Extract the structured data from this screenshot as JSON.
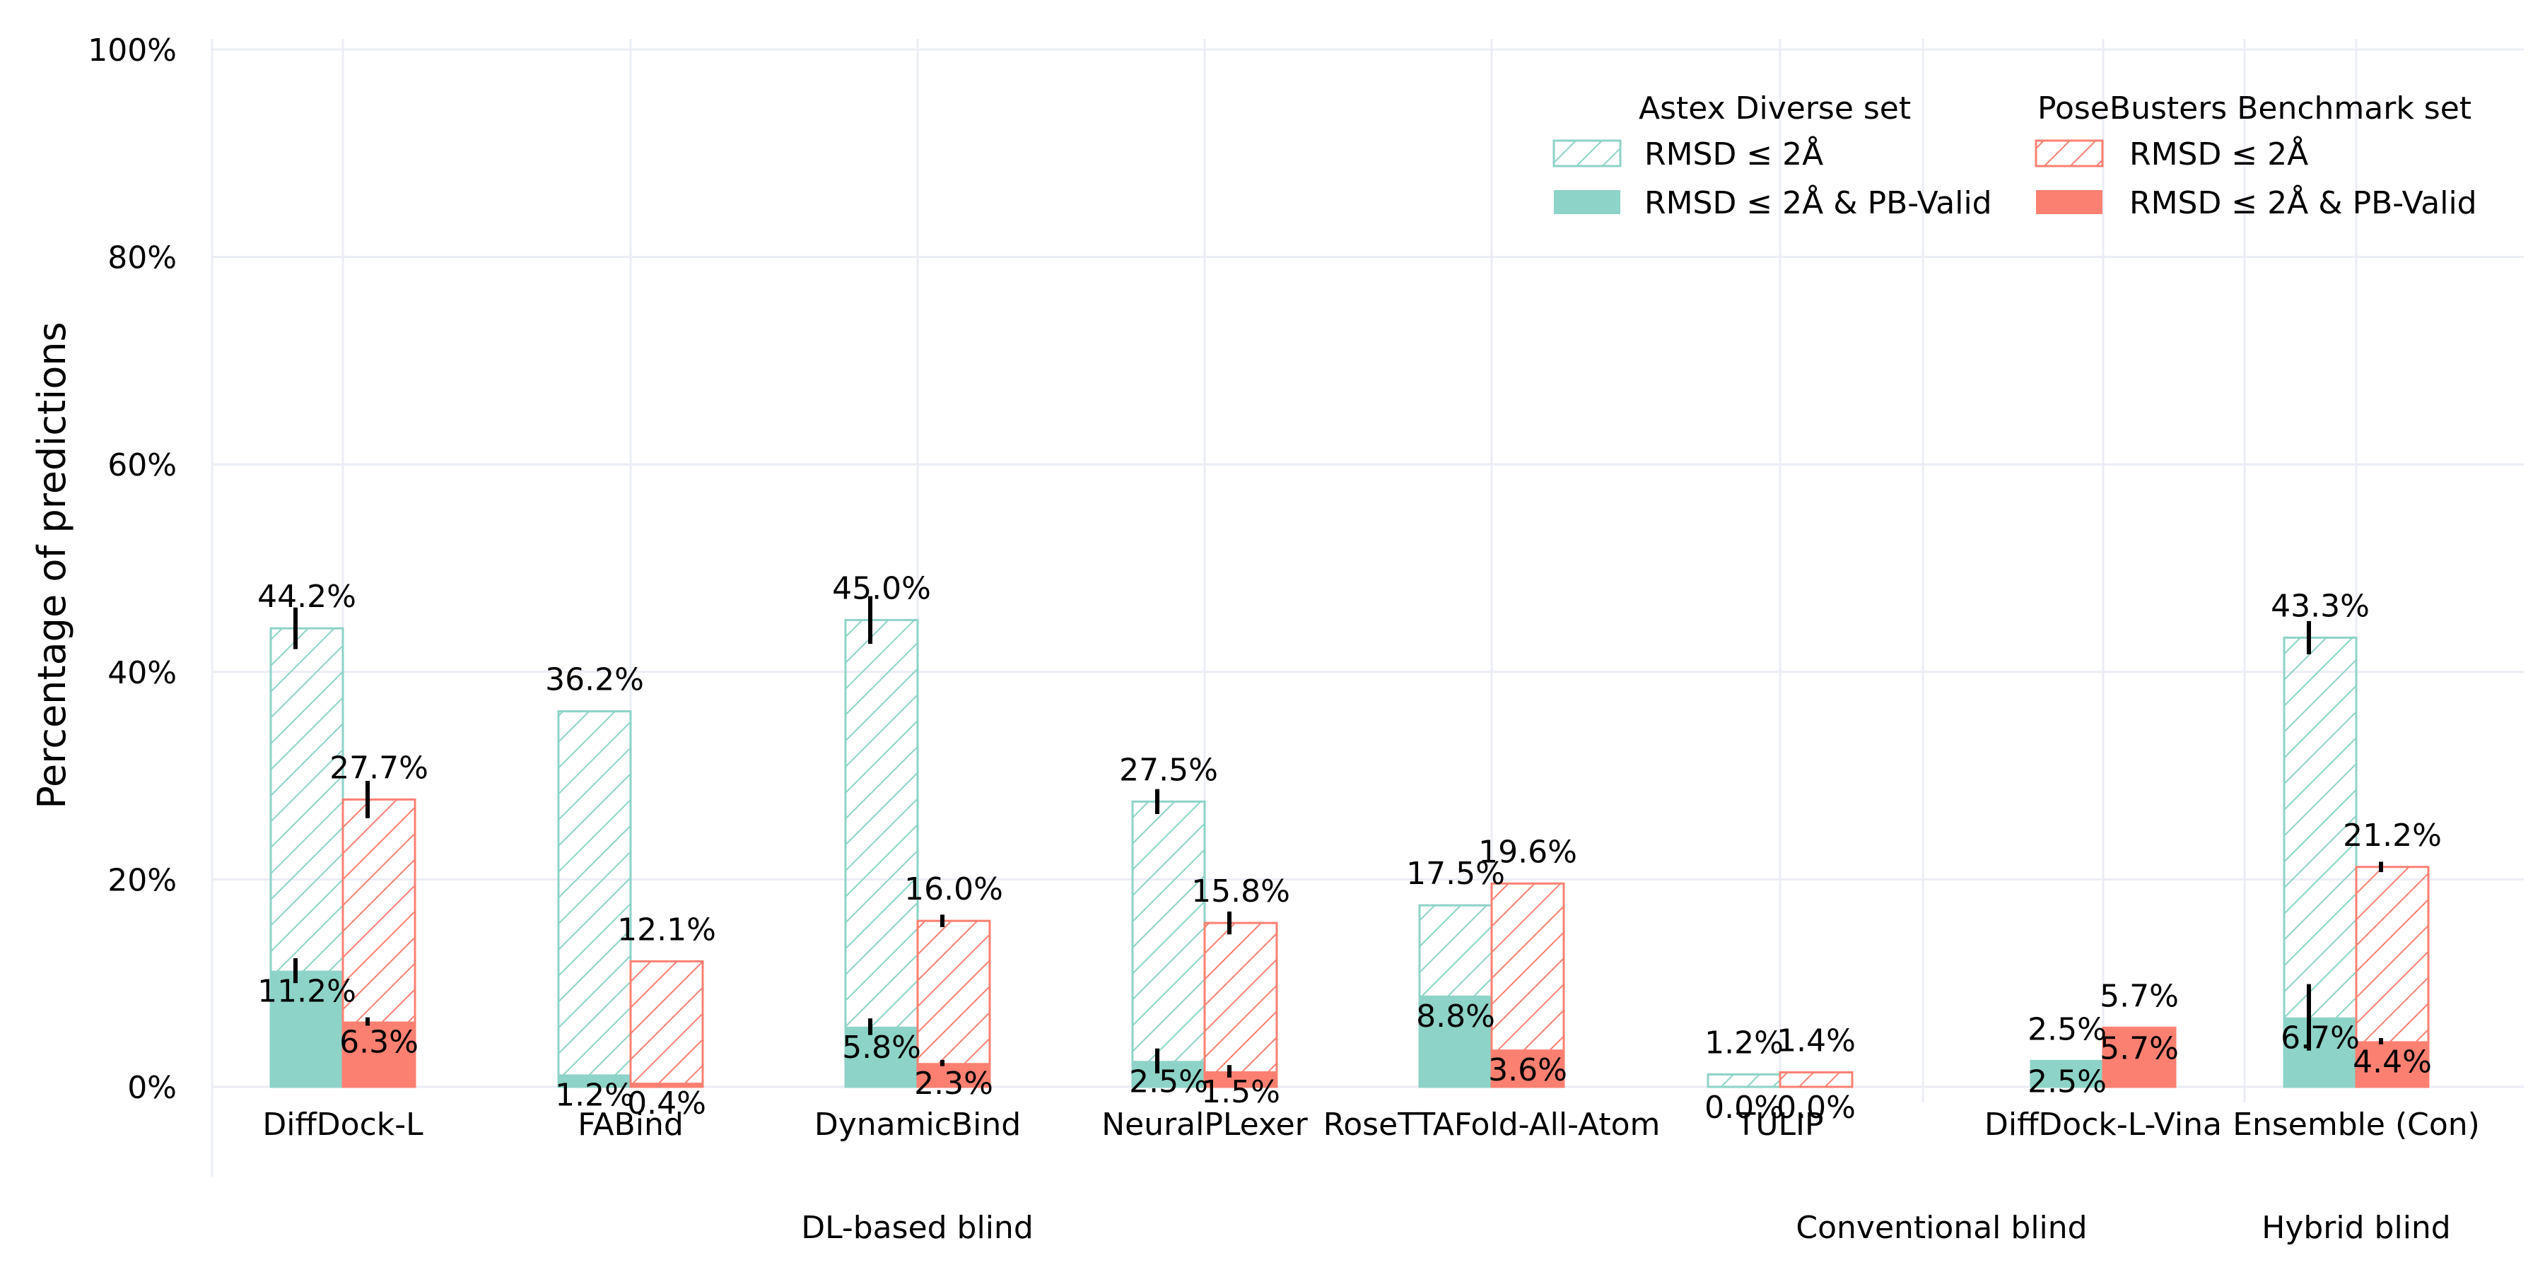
{
  "chart_data": {
    "type": "bar",
    "ylabel": "Percentage of predictions",
    "ylim": [
      0,
      100
    ],
    "yticks": [
      0,
      20,
      40,
      60,
      80,
      100
    ],
    "ytick_labels": [
      "0%",
      "20%",
      "40%",
      "60%",
      "80%",
      "100%"
    ],
    "grid": true,
    "categories": [
      "DiffDock-L",
      "FABind",
      "DynamicBind",
      "NeuralPLexer",
      "RoseTTAFold-All-Atom",
      "TULIP",
      "DiffDock-L-Vina",
      "Ensemble (Con)"
    ],
    "groups": [
      {
        "label": "DL-based blind",
        "categories": [
          "DiffDock-L",
          "FABind",
          "DynamicBind",
          "NeuralPLexer",
          "RoseTTAFold-All-Atom"
        ]
      },
      {
        "label": "Conventional blind",
        "categories": [
          "TULIP",
          "DiffDock-L-Vina"
        ]
      },
      {
        "label": "Hybrid blind",
        "categories": [
          "Ensemble (Con)"
        ]
      }
    ],
    "legend": {
      "placement": "top-right",
      "sets": [
        {
          "title": "Astex Diverse set",
          "color": "#8dd3c7",
          "hatched_label": "RMSD ≤ 2Å",
          "solid_label": "RMSD ≤ 2Å & PB-Valid"
        },
        {
          "title": "PoseBusters Benchmark set",
          "color": "#fb8072",
          "hatched_label": "RMSD ≤ 2Å",
          "solid_label": "RMSD ≤ 2Å & PB-Valid"
        }
      ]
    },
    "series": [
      {
        "dataset": "Astex Diverse set",
        "color": "#8dd3c7",
        "rmsd": [
          44.2,
          36.2,
          45.0,
          27.5,
          17.5,
          1.2,
          2.5,
          43.3
        ],
        "rmsd_labels": [
          "44.2%",
          "36.2%",
          "45.0%",
          "27.5%",
          "17.5%",
          "1.2%",
          "2.5%",
          "43.3%"
        ],
        "rmsd_pbvalid": [
          11.2,
          1.2,
          5.8,
          2.5,
          8.8,
          0.0,
          2.5,
          6.7
        ],
        "rmsd_pbvalid_labels": [
          "11.2%",
          "1.2%",
          "5.8%",
          "2.5%",
          "8.8%",
          "0.0%",
          "2.5%",
          "6.7%"
        ],
        "rmsd_err": [
          2.0,
          0,
          2.3,
          1.2,
          0,
          0,
          0,
          1.6
        ],
        "rmsd_pbvalid_err": [
          1.2,
          0,
          0.8,
          1.2,
          0,
          0,
          0,
          3.2
        ]
      },
      {
        "dataset": "PoseBusters Benchmark set",
        "color": "#fb8072",
        "rmsd": [
          27.7,
          12.1,
          16.0,
          15.8,
          19.6,
          1.4,
          5.7,
          21.2
        ],
        "rmsd_labels": [
          "27.7%",
          "12.1%",
          "16.0%",
          "15.8%",
          "19.6%",
          "1.4%",
          "5.7%",
          "21.2%"
        ],
        "rmsd_pbvalid": [
          6.3,
          0.4,
          2.3,
          1.5,
          3.6,
          0.0,
          5.7,
          4.4
        ],
        "rmsd_pbvalid_labels": [
          "6.3%",
          "0.4%",
          "2.3%",
          "1.5%",
          "3.6%",
          "0.0%",
          "5.7%",
          "4.4%"
        ],
        "rmsd_err": [
          1.8,
          0,
          0.6,
          1.1,
          0,
          0,
          0,
          0.5
        ],
        "rmsd_pbvalid_err": [
          0.4,
          0,
          0.3,
          0.6,
          0,
          0,
          0,
          0.3
        ]
      }
    ]
  }
}
